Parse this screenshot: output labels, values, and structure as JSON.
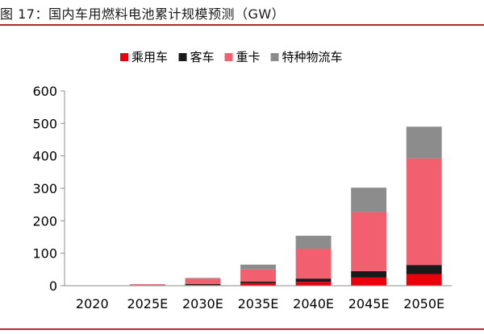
{
  "header": {
    "title": "图 17：国内车用燃料电池累计规模预测（GW）"
  },
  "chart_data": {
    "type": "bar",
    "stacked": true,
    "categories": [
      "2020",
      "2025E",
      "2030E",
      "2035E",
      "2040E",
      "2045E",
      "2050E"
    ],
    "series": [
      {
        "name": "乘用车",
        "color": "#e8000b",
        "values": [
          0,
          0.5,
          2,
          8,
          12,
          25,
          36
        ]
      },
      {
        "name": "客车",
        "color": "#1a1a1a",
        "values": [
          0,
          1,
          3,
          5,
          10,
          20,
          28
        ]
      },
      {
        "name": "重卡",
        "color": "#f2606f",
        "values": [
          0,
          3,
          17,
          37,
          92,
          182,
          328
        ]
      },
      {
        "name": "特种物流车",
        "color": "#8c8c8c",
        "values": [
          0,
          0.5,
          2,
          15,
          40,
          75,
          98
        ]
      }
    ],
    "ylim": [
      0,
      600
    ],
    "yticks": [
      0,
      100,
      200,
      300,
      400,
      500,
      600
    ],
    "xlabel": "",
    "ylabel": "",
    "legend_position": "top-center",
    "grid": false
  }
}
